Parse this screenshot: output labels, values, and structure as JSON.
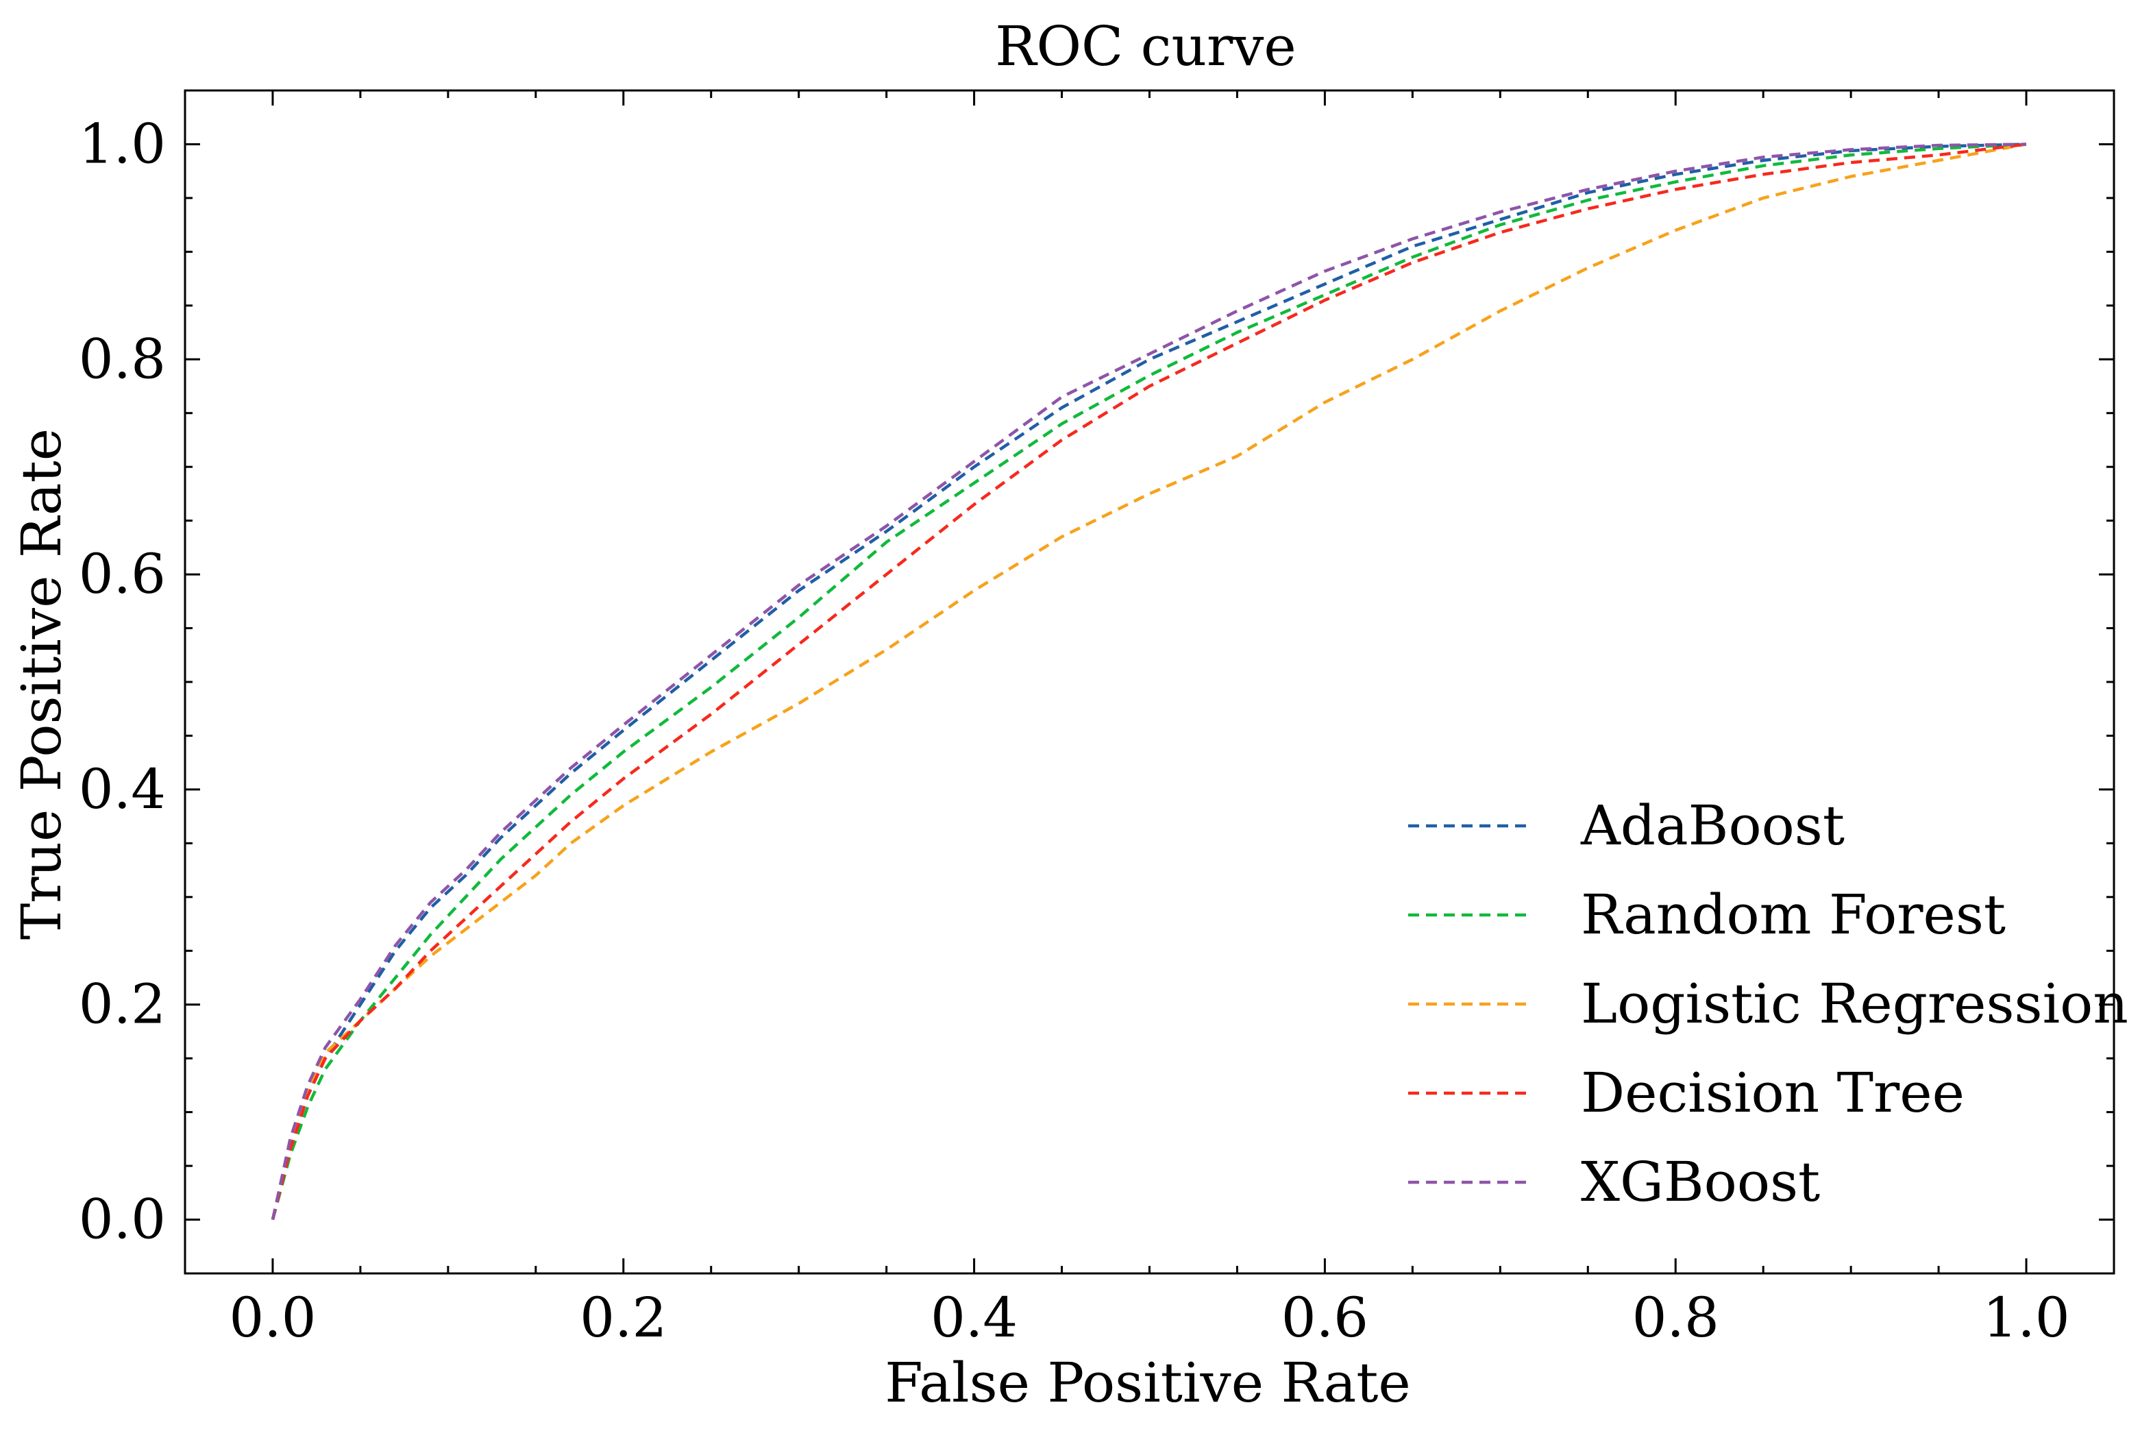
{
  "chart_data": {
    "type": "line",
    "title": "ROC curve",
    "xlabel": "False Positive Rate",
    "ylabel": "True Positive Rate",
    "xlim": [
      -0.05,
      1.05
    ],
    "ylim": [
      -0.05,
      1.05
    ],
    "xticks": [
      0.0,
      0.2,
      0.4,
      0.6,
      0.8,
      1.0
    ],
    "yticks": [
      0.0,
      0.2,
      0.4,
      0.6,
      0.8,
      1.0
    ],
    "xtick_labels": [
      "0.0",
      "0.2",
      "0.4",
      "0.6",
      "0.8",
      "1.0"
    ],
    "ytick_labels": [
      "0.0",
      "0.2",
      "0.4",
      "0.6",
      "0.8",
      "1.0"
    ],
    "grid": false,
    "legend_position": "lower-right",
    "line_style": "dashed",
    "series": [
      {
        "name": "AdaBoost",
        "color": "#1f5fa6",
        "x": [
          0.0,
          0.01,
          0.02,
          0.03,
          0.05,
          0.07,
          0.09,
          0.11,
          0.13,
          0.15,
          0.17,
          0.2,
          0.25,
          0.3,
          0.35,
          0.4,
          0.45,
          0.5,
          0.55,
          0.6,
          0.65,
          0.7,
          0.75,
          0.8,
          0.85,
          0.9,
          0.95,
          1.0
        ],
        "y": [
          0.0,
          0.07,
          0.12,
          0.15,
          0.2,
          0.25,
          0.29,
          0.32,
          0.355,
          0.385,
          0.415,
          0.455,
          0.52,
          0.585,
          0.64,
          0.7,
          0.755,
          0.8,
          0.835,
          0.87,
          0.905,
          0.93,
          0.955,
          0.972,
          0.985,
          0.994,
          0.998,
          1.0
        ]
      },
      {
        "name": "Random Forest",
        "color": "#12b93c",
        "x": [
          0.0,
          0.01,
          0.02,
          0.03,
          0.05,
          0.07,
          0.09,
          0.11,
          0.13,
          0.15,
          0.17,
          0.2,
          0.25,
          0.3,
          0.35,
          0.4,
          0.45,
          0.5,
          0.55,
          0.6,
          0.65,
          0.7,
          0.75,
          0.8,
          0.85,
          0.9,
          0.95,
          1.0
        ],
        "y": [
          0.0,
          0.06,
          0.105,
          0.14,
          0.185,
          0.225,
          0.265,
          0.3,
          0.335,
          0.365,
          0.395,
          0.435,
          0.495,
          0.56,
          0.63,
          0.685,
          0.74,
          0.785,
          0.825,
          0.86,
          0.895,
          0.925,
          0.948,
          0.965,
          0.98,
          0.99,
          0.996,
          1.0
        ]
      },
      {
        "name": "Logistic Regression",
        "color": "#f7a21b",
        "x": [
          0.0,
          0.01,
          0.02,
          0.03,
          0.05,
          0.07,
          0.09,
          0.11,
          0.13,
          0.15,
          0.17,
          0.2,
          0.25,
          0.3,
          0.35,
          0.4,
          0.45,
          0.5,
          0.55,
          0.6,
          0.65,
          0.7,
          0.75,
          0.8,
          0.85,
          0.9,
          0.95,
          1.0
        ],
        "y": [
          0.0,
          0.07,
          0.12,
          0.155,
          0.185,
          0.215,
          0.245,
          0.27,
          0.295,
          0.32,
          0.35,
          0.385,
          0.435,
          0.48,
          0.53,
          0.585,
          0.635,
          0.675,
          0.71,
          0.76,
          0.8,
          0.845,
          0.885,
          0.92,
          0.95,
          0.97,
          0.985,
          1.0
        ]
      },
      {
        "name": "Decision Tree",
        "color": "#f52a1e",
        "x": [
          0.0,
          0.01,
          0.02,
          0.03,
          0.05,
          0.07,
          0.09,
          0.11,
          0.13,
          0.15,
          0.17,
          0.2,
          0.25,
          0.3,
          0.35,
          0.4,
          0.45,
          0.5,
          0.55,
          0.6,
          0.65,
          0.7,
          0.75,
          0.8,
          0.85,
          0.9,
          0.95,
          1.0
        ],
        "y": [
          0.0,
          0.065,
          0.115,
          0.15,
          0.185,
          0.215,
          0.25,
          0.28,
          0.31,
          0.34,
          0.37,
          0.41,
          0.47,
          0.535,
          0.6,
          0.665,
          0.725,
          0.775,
          0.815,
          0.855,
          0.89,
          0.918,
          0.94,
          0.958,
          0.972,
          0.983,
          0.99,
          1.0
        ]
      },
      {
        "name": "XGBoost",
        "color": "#8e55a8",
        "x": [
          0.0,
          0.01,
          0.02,
          0.03,
          0.05,
          0.07,
          0.09,
          0.11,
          0.13,
          0.15,
          0.17,
          0.2,
          0.25,
          0.3,
          0.35,
          0.4,
          0.45,
          0.5,
          0.55,
          0.6,
          0.65,
          0.7,
          0.75,
          0.8,
          0.85,
          0.9,
          0.95,
          1.0
        ],
        "y": [
          0.0,
          0.075,
          0.125,
          0.16,
          0.205,
          0.255,
          0.295,
          0.325,
          0.36,
          0.39,
          0.42,
          0.46,
          0.525,
          0.59,
          0.645,
          0.705,
          0.765,
          0.805,
          0.845,
          0.882,
          0.912,
          0.937,
          0.958,
          0.975,
          0.988,
          0.995,
          0.999,
          1.0
        ]
      }
    ]
  }
}
